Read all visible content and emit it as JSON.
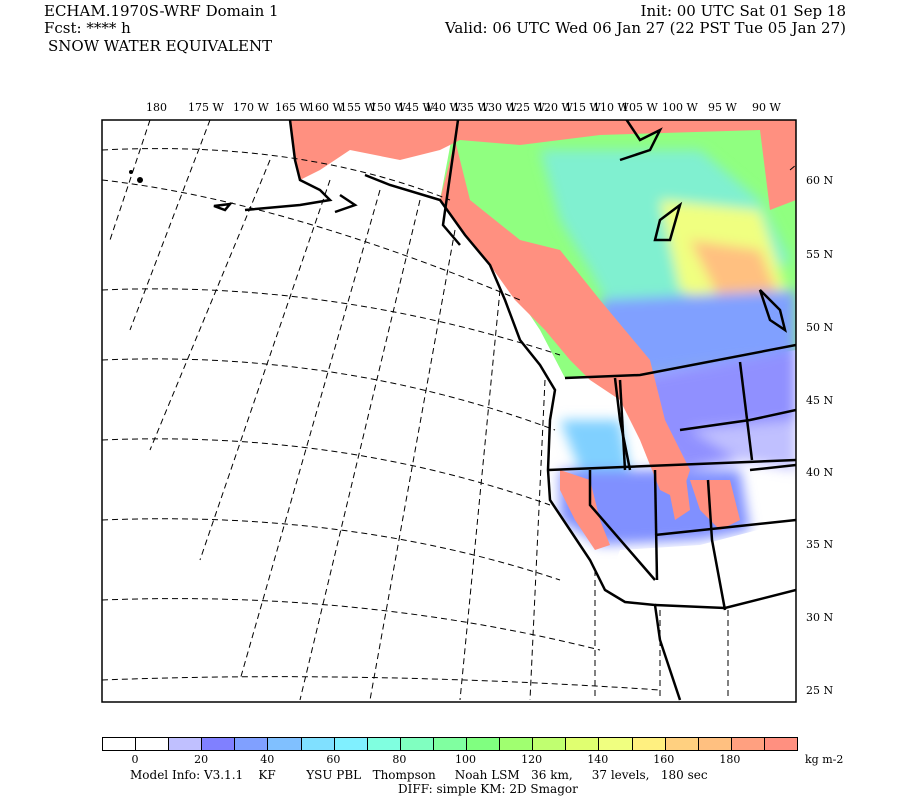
{
  "header": {
    "title": "ECHAM.1970S-WRF Domain 1",
    "fcst": "Fcst: **** h",
    "field": "SNOW WATER EQUIVALENT",
    "init": "Init: 00 UTC Sat 01 Sep 18",
    "valid": "Valid: 06 UTC Wed 06 Jan 27 (22 PST Tue 05 Jan 27)"
  },
  "map": {
    "lon_labels": [
      "180",
      "175 W",
      "170 W",
      "165 W",
      "160 W",
      "155 W",
      "150 W",
      "145 W",
      "140 W",
      "135 W",
      "130 W",
      "125 W",
      "120 W",
      "115 W",
      "110 W",
      "105 W",
      "100 W",
      "95 W",
      "90 W"
    ],
    "lat_labels": [
      "60 N",
      "55 N",
      "50 N",
      "45 N",
      "40 N",
      "35 N",
      "30 N",
      "25 N"
    ]
  },
  "colorbar": {
    "units": "kg m-2",
    "tick_labels": [
      "0",
      "20",
      "40",
      "60",
      "80",
      "100",
      "120",
      "140",
      "160",
      "180"
    ],
    "colors": [
      "#ffffff",
      "#ffffff",
      "#c0c0ff",
      "#8080ff",
      "#80a0ff",
      "#80c0ff",
      "#80e0ff",
      "#80f0ff",
      "#80ffe0",
      "#80ffc0",
      "#80ffa0",
      "#80ff80",
      "#a0ff70",
      "#c0ff70",
      "#e0ff70",
      "#f0ff80",
      "#fff080",
      "#ffd080",
      "#ffc080",
      "#ffa080",
      "#ff9080"
    ]
  },
  "footer": {
    "model_info": "Model Info: V3.1.1    KF        YSU PBL   Thompson     Noah LSM   36 km,     37 levels,   180 sec",
    "diff": "DIFF: simple KM: 2D Smagor"
  }
}
